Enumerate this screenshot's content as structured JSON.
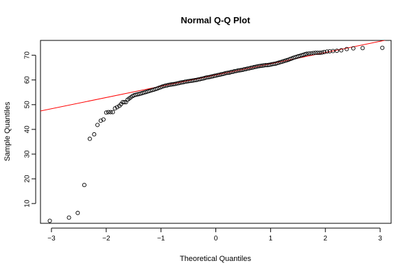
{
  "chart_data": {
    "type": "scatter",
    "title": "Normal Q-Q Plot",
    "xlabel": "Theoretical Quantiles",
    "ylabel": "Sample Quantiles",
    "xlim": [
      -3.2,
      3.2
    ],
    "ylim": [
      2,
      76
    ],
    "x_ticks": [
      -3,
      -2,
      -1,
      0,
      1,
      2,
      3
    ],
    "x_tick_labels": [
      "−3",
      "−2",
      "−1",
      "0",
      "1",
      "2",
      "3"
    ],
    "y_ticks": [
      10,
      20,
      30,
      40,
      50,
      60,
      70
    ],
    "y_tick_labels": [
      "10",
      "20",
      "30",
      "40",
      "50",
      "60",
      "70"
    ],
    "grid": false,
    "legend": "none",
    "point_color": "#000000",
    "line_color": "#ff0000",
    "reference_line": {
      "intercept": 62.0,
      "slope": 4.55
    },
    "points": [
      [
        -3.03,
        3.0
      ],
      [
        -2.68,
        4.3
      ],
      [
        -2.52,
        6.2
      ],
      [
        -2.4,
        17.5
      ],
      [
        -2.3,
        36.2
      ],
      [
        -2.22,
        38.0
      ],
      [
        -2.16,
        41.8
      ],
      [
        -2.1,
        43.5
      ],
      [
        -2.05,
        44.0
      ],
      [
        -2.0,
        46.8
      ],
      [
        -1.96,
        47.0
      ],
      [
        -1.92,
        47.0
      ],
      [
        -1.88,
        47.0
      ],
      [
        -1.84,
        48.5
      ],
      [
        -1.8,
        49.0
      ],
      [
        -1.76,
        49.5
      ],
      [
        -1.73,
        50.2
      ],
      [
        -1.7,
        51.0
      ],
      [
        -1.67,
        51.0
      ],
      [
        -1.64,
        51.0
      ],
      [
        -1.61,
        52.0
      ],
      [
        -1.58,
        52.5
      ],
      [
        -1.55,
        53.0
      ],
      [
        -1.52,
        53.5
      ],
      [
        -1.49,
        53.8
      ],
      [
        -1.46,
        54.0
      ],
      [
        -1.43,
        54.2
      ],
      [
        -1.4,
        54.3
      ],
      [
        -1.37,
        54.5
      ],
      [
        -1.34,
        54.7
      ],
      [
        -1.31,
        54.9
      ],
      [
        -1.28,
        55.1
      ],
      [
        -1.25,
        55.3
      ],
      [
        -1.22,
        55.5
      ],
      [
        -1.19,
        55.7
      ],
      [
        -1.16,
        55.9
      ],
      [
        -1.13,
        56.1
      ],
      [
        -1.1,
        56.3
      ],
      [
        -1.07,
        56.5
      ],
      [
        -1.04,
        56.8
      ],
      [
        -1.01,
        57.0
      ],
      [
        -0.98,
        57.3
      ],
      [
        -0.95,
        57.5
      ],
      [
        -0.92,
        57.7
      ],
      [
        -0.89,
        57.8
      ],
      [
        -0.86,
        58.0
      ],
      [
        -0.83,
        58.1
      ],
      [
        -0.8,
        58.2
      ],
      [
        -0.77,
        58.3
      ],
      [
        -0.74,
        58.4
      ],
      [
        -0.71,
        58.6
      ],
      [
        -0.68,
        58.7
      ],
      [
        -0.65,
        58.9
      ],
      [
        -0.62,
        59.0
      ],
      [
        -0.59,
        59.1
      ],
      [
        -0.56,
        59.3
      ],
      [
        -0.53,
        59.4
      ],
      [
        -0.5,
        59.5
      ],
      [
        -0.47,
        59.6
      ],
      [
        -0.44,
        59.7
      ],
      [
        -0.41,
        59.8
      ],
      [
        -0.38,
        59.9
      ],
      [
        -0.35,
        60.0
      ],
      [
        -0.32,
        60.2
      ],
      [
        -0.29,
        60.3
      ],
      [
        -0.26,
        60.5
      ],
      [
        -0.23,
        60.6
      ],
      [
        -0.2,
        60.8
      ],
      [
        -0.17,
        61.0
      ],
      [
        -0.14,
        61.1
      ],
      [
        -0.11,
        61.2
      ],
      [
        -0.08,
        61.4
      ],
      [
        -0.05,
        61.5
      ],
      [
        -0.02,
        61.7
      ],
      [
        0.01,
        61.8
      ],
      [
        0.04,
        62.0
      ],
      [
        0.07,
        62.1
      ],
      [
        0.1,
        62.3
      ],
      [
        0.13,
        62.4
      ],
      [
        0.16,
        62.6
      ],
      [
        0.19,
        62.8
      ],
      [
        0.22,
        62.9
      ],
      [
        0.25,
        63.0
      ],
      [
        0.28,
        63.2
      ],
      [
        0.31,
        63.3
      ],
      [
        0.34,
        63.5
      ],
      [
        0.37,
        63.6
      ],
      [
        0.4,
        63.8
      ],
      [
        0.43,
        63.9
      ],
      [
        0.46,
        64.0
      ],
      [
        0.49,
        64.1
      ],
      [
        0.52,
        64.3
      ],
      [
        0.55,
        64.4
      ],
      [
        0.58,
        64.6
      ],
      [
        0.61,
        64.7
      ],
      [
        0.64,
        64.9
      ],
      [
        0.67,
        65.0
      ],
      [
        0.7,
        65.2
      ],
      [
        0.73,
        65.3
      ],
      [
        0.76,
        65.5
      ],
      [
        0.79,
        65.6
      ],
      [
        0.82,
        65.7
      ],
      [
        0.85,
        65.8
      ],
      [
        0.88,
        65.9
      ],
      [
        0.91,
        66.0
      ],
      [
        0.94,
        66.0
      ],
      [
        0.97,
        66.1
      ],
      [
        1.0,
        66.2
      ],
      [
        1.03,
        66.4
      ],
      [
        1.06,
        66.5
      ],
      [
        1.09,
        66.6
      ],
      [
        1.12,
        66.8
      ],
      [
        1.15,
        67.0
      ],
      [
        1.18,
        67.2
      ],
      [
        1.21,
        67.4
      ],
      [
        1.24,
        67.6
      ],
      [
        1.27,
        67.8
      ],
      [
        1.3,
        68.0
      ],
      [
        1.33,
        68.2
      ],
      [
        1.36,
        68.5
      ],
      [
        1.39,
        68.7
      ],
      [
        1.42,
        69.0
      ],
      [
        1.45,
        69.2
      ],
      [
        1.48,
        69.4
      ],
      [
        1.51,
        69.6
      ],
      [
        1.54,
        69.8
      ],
      [
        1.57,
        70.0
      ],
      [
        1.6,
        70.2
      ],
      [
        1.63,
        70.4
      ],
      [
        1.66,
        70.6
      ],
      [
        1.7,
        70.7
      ],
      [
        1.74,
        70.8
      ],
      [
        1.78,
        70.9
      ],
      [
        1.82,
        71.0
      ],
      [
        1.86,
        71.0
      ],
      [
        1.9,
        71.0
      ],
      [
        1.94,
        71.1
      ],
      [
        1.98,
        71.3
      ],
      [
        2.03,
        71.5
      ],
      [
        2.08,
        71.6
      ],
      [
        2.14,
        71.7
      ],
      [
        2.21,
        71.8
      ],
      [
        2.29,
        72.0
      ],
      [
        2.39,
        72.5
      ],
      [
        2.51,
        72.8
      ],
      [
        2.68,
        72.9
      ],
      [
        3.04,
        73.0
      ]
    ]
  }
}
